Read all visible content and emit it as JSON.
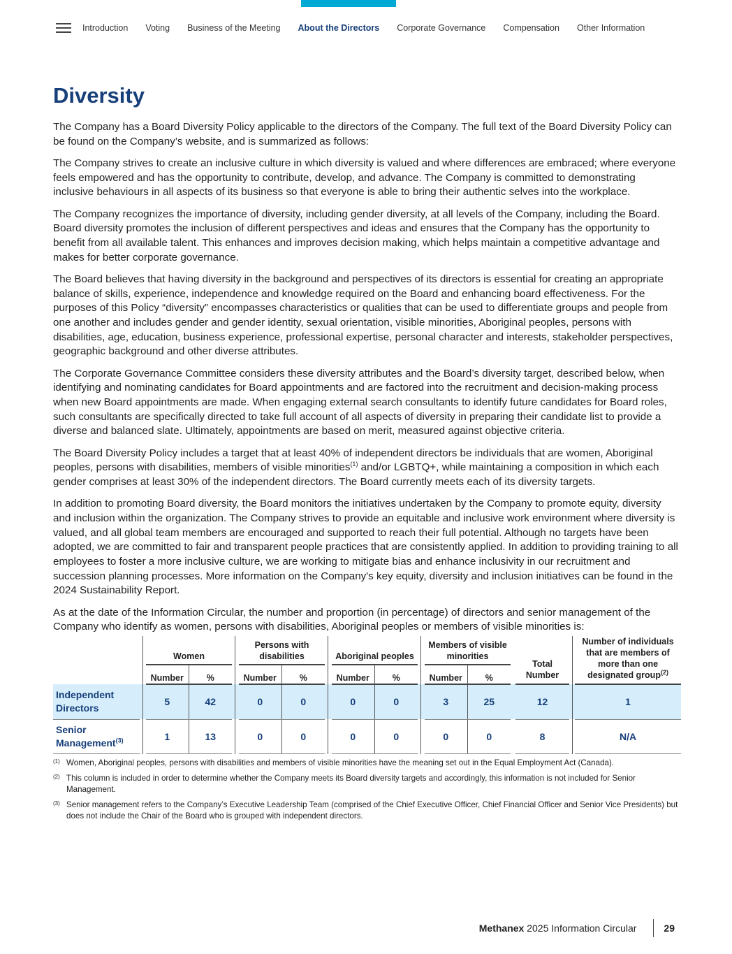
{
  "nav": {
    "items": [
      "Introduction",
      "Voting",
      "Business of the Meeting",
      "About the Directors",
      "Corporate Governance",
      "Compensation",
      "Other Information"
    ],
    "active": "About the Directors",
    "accent": "#00a9d4"
  },
  "title": "Diversity",
  "paragraphs": [
    "The Company has a Board Diversity Policy applicable to the directors of the Company. The full text of the Board Diversity Policy can be found on the Company’s website, and is summarized as follows:",
    "The Company strives to create an inclusive culture in which diversity is valued and where differences are embraced; where everyone feels empowered and has the opportunity to contribute, develop, and advance. The Company is committed to demonstrating inclusive behaviours in all aspects of its business so that everyone is able to bring their authentic selves into the workplace.",
    "The Company recognizes the importance of diversity, including gender diversity, at all levels of the Company, including the Board. Board diversity promotes the inclusion of different perspectives and ideas and ensures that the Company has the opportunity to benefit from all available talent. This enhances and improves decision making, which helps maintain a competitive advantage and makes for better corporate governance.",
    "The Board believes that having diversity in the background and perspectives of its directors is essential for creating an appropriate balance of skills, experience, independence and knowledge required on the Board and enhancing board effectiveness. For the purposes of this Policy “diversity” encompasses characteristics or qualities that can be used to differentiate groups and people from one another and includes gender and gender identity, sexual orientation, visible minorities, Aboriginal peoples, persons with disabilities, age, education, business experience, professional expertise, personal character and interests, stakeholder perspectives, geographic background and other diverse attributes.",
    "The Corporate Governance Committee considers these diversity attributes and the Board’s diversity target, described below, when identifying and nominating candidates for Board appointments and are factored into the recruitment and decision-making process when new Board appointments are made. When engaging external search consultants to identify future candidates for Board roles, such consultants are specifically directed to take full account of all aspects of diversity in preparing their candidate list to provide a diverse and balanced slate. Ultimately, appointments are based on merit, measured against objective criteria."
  ],
  "target_para": {
    "before": "The Board Diversity Policy includes a target that at least 40% of independent directors be individuals that are women, Aboriginal peoples, persons with disabilities, members of visible minorities",
    "sup": "(1)",
    "after": " and/or LGBTQ+, while maintaining a composition in which each gender comprises at least 30% of the independent directors. The Board currently meets each of its diversity targets."
  },
  "paragraphs2": [
    "In addition to promoting Board diversity, the Board monitors the initiatives undertaken by the Company to promote equity, diversity and inclusion within the organization. The Company strives to provide an equitable and inclusive work environment where diversity is valued, and all global team members are encouraged and supported to reach their full potential. Although no targets have been adopted, we are committed to fair and transparent people practices that are consistently applied. In addition to providing training to all employees to foster a more inclusive culture, we are working to mitigate bias and enhance inclusivity in our recruitment and succession planning processes. More information on the Company's key equity, diversity and inclusion initiatives can be found in the 2024 Sustainability Report.",
    "As at the date of the Information Circular, the number and proportion (in percentage) of directors and senior management of the Company who identify as women, persons with disabilities, Aboriginal peoples or members of visible minorities is:"
  ],
  "table": {
    "groups": [
      "Women",
      "Persons with disabilities",
      "Aboriginal peoples",
      "Members of visible minorities"
    ],
    "sub": {
      "number": "Number",
      "pct": "%"
    },
    "total": "Total Number",
    "multi": "Number of individuals that are members of more than one designated group",
    "multi_sup": "(2)",
    "rows": [
      {
        "label": "Independent Directors",
        "sup": "",
        "values": [
          "5",
          "42",
          "0",
          "0",
          "0",
          "0",
          "3",
          "25"
        ],
        "total": "12",
        "multi": "1"
      },
      {
        "label": "Senior Management",
        "sup": "(3)",
        "values": [
          "1",
          "13",
          "0",
          "0",
          "0",
          "0",
          "0",
          "0"
        ],
        "total": "8",
        "multi": "N/A"
      }
    ]
  },
  "footnotes": [
    {
      "mark": "(1)",
      "text": "Women, Aboriginal peoples, persons with disabilities and members of visible minorities have the meaning set out in the Equal Employment Act (Canada)."
    },
    {
      "mark": "(2)",
      "text": "This column is included in order to determine whether the Company meets its Board diversity targets and accordingly, this information is not included for Senior Management."
    },
    {
      "mark": "(3)",
      "text": "Senior management refers to the Company’s Executive Leadership Team (comprised of the Chief Executive Officer, Chief Financial Officer and Senior Vice Presidents) but does not include the Chair of the Board who is grouped with independent directors."
    }
  ],
  "footer": {
    "brand": "Methanex",
    "doc": " 2025 Information Circular",
    "page": "29"
  }
}
